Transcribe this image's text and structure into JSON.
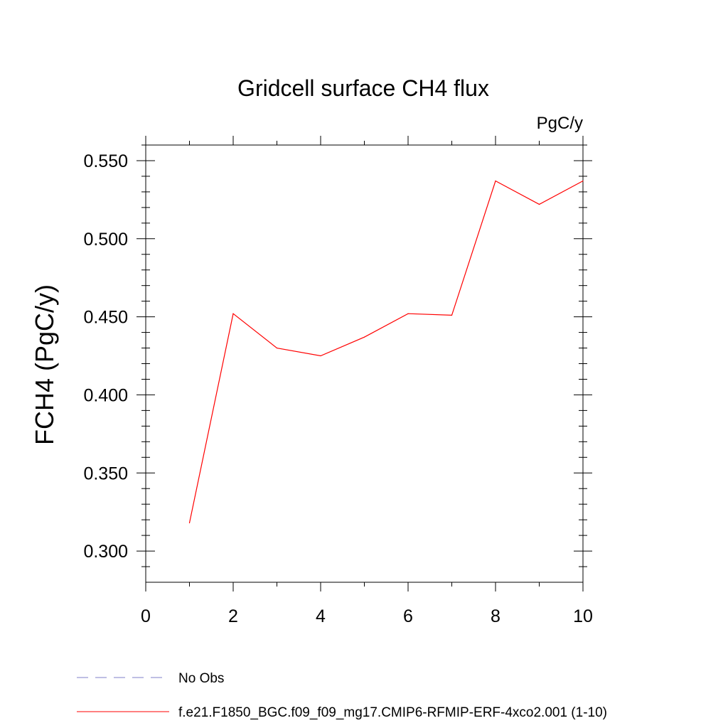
{
  "chart_data": {
    "type": "line",
    "title": "Gridcell surface CH4 flux",
    "units_label": "PgC/y",
    "ylabel": "FCH4  (PgC/y)",
    "xlabel": "",
    "xlim": [
      0,
      10
    ],
    "ylim": [
      0.28,
      0.56
    ],
    "x_ticks": [
      0,
      2,
      4,
      6,
      8,
      10
    ],
    "x_tick_labels": [
      "0",
      "2",
      "4",
      "6",
      "8",
      "10"
    ],
    "y_ticks": [
      0.3,
      0.35,
      0.4,
      0.45,
      0.5,
      0.55
    ],
    "y_tick_labels": [
      "0.300",
      "0.350",
      "0.400",
      "0.450",
      "0.500",
      "0.550"
    ],
    "grid": false,
    "legend_position": "bottom",
    "series": [
      {
        "name": "f.e21.F1850_BGC.f09_f09_mg17.CMIP6-RFMIP-ERF-4xco2.001 (1-10)",
        "color": "#ff0000",
        "style": "solid",
        "x": [
          1,
          2,
          3,
          4,
          5,
          6,
          7,
          8,
          9,
          10
        ],
        "y": [
          0.318,
          0.452,
          0.43,
          0.425,
          0.437,
          0.452,
          0.451,
          0.537,
          0.522,
          0.537
        ]
      }
    ],
    "legend": [
      {
        "label": "No Obs",
        "color": "#7f7fc8",
        "style": "dashed"
      },
      {
        "label": "f.e21.F1850_BGC.f09_f09_mg17.CMIP6-RFMIP-ERF-4xco2.001 (1-10)",
        "color": "#ff0000",
        "style": "solid"
      }
    ]
  }
}
